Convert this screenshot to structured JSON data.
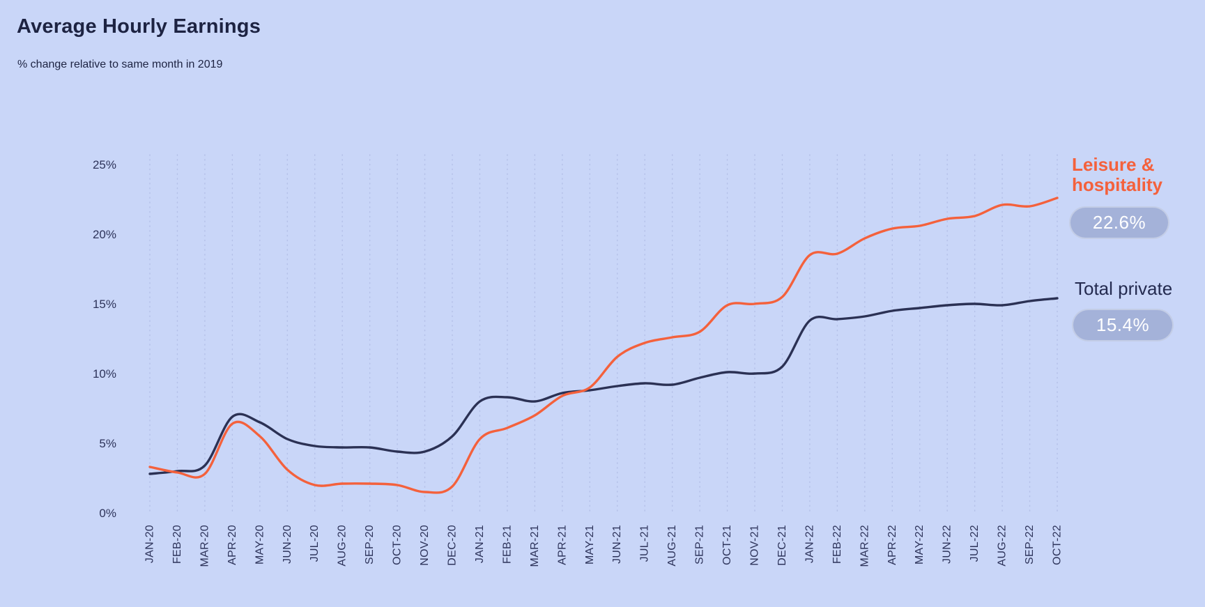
{
  "header": {
    "title": "Average Hourly Earnings",
    "subtitle": "% change relative to same month in 2019"
  },
  "legend": [
    {
      "name": "Leisure & hospitality",
      "value": "22.6%",
      "color": "#f4613c"
    },
    {
      "name": "Total private",
      "value": "15.4%",
      "color": "#242b50"
    }
  ],
  "colors": {
    "background": "#c9d6f8",
    "leisure_line": "#f4613c",
    "total_private_line": "#2b3154",
    "value_pill_background": "#a4b2d9",
    "value_pill_text": "#ffffff",
    "axis_text": "#2d335a",
    "gridline": "#b4c0e8",
    "title_text": "#1d2342"
  },
  "chart_data": {
    "type": "line",
    "title": "Average Hourly Earnings",
    "subtitle": "% change relative to same month in 2019",
    "categories": [
      "JAN-20",
      "FEB-20",
      "MAR-20",
      "APR-20",
      "MAY-20",
      "JUN-20",
      "JUL-20",
      "AUG-20",
      "SEP-20",
      "OCT-20",
      "NOV-20",
      "DEC-20",
      "JAN-21",
      "FEB-21",
      "MAR-21",
      "APR-21",
      "MAY-21",
      "JUN-21",
      "JUL-21",
      "AUG-21",
      "SEP-21",
      "OCT-21",
      "NOV-21",
      "DEC-21",
      "JAN-22",
      "FEB-22",
      "MAR-22",
      "APR-22",
      "MAY-22",
      "JUN-22",
      "JUL-22",
      "AUG-22",
      "SEP-22",
      "OCT-22"
    ],
    "series": [
      {
        "name": "Total private",
        "color": "#2b3154",
        "end_label": "15.4%",
        "values": [
          2.8,
          3.0,
          3.4,
          6.9,
          6.5,
          5.3,
          4.8,
          4.7,
          4.7,
          4.4,
          4.4,
          5.5,
          8.0,
          8.3,
          8.0,
          8.6,
          8.8,
          9.1,
          9.3,
          9.2,
          9.7,
          10.1,
          10.0,
          10.5,
          13.8,
          13.9,
          14.1,
          14.5,
          14.7,
          14.9,
          15.0,
          14.9,
          15.2,
          15.4
        ]
      },
      {
        "name": "Leisure & hospitality",
        "color": "#f4613c",
        "end_label": "22.6%",
        "values": [
          3.3,
          2.9,
          2.8,
          6.4,
          5.5,
          3.1,
          2.0,
          2.1,
          2.1,
          2.0,
          1.5,
          1.9,
          5.3,
          6.1,
          7.0,
          8.4,
          9.0,
          11.2,
          12.2,
          12.6,
          13.0,
          14.9,
          15.0,
          15.5,
          18.5,
          18.6,
          19.7,
          20.4,
          20.6,
          21.1,
          21.3,
          22.1,
          22.0,
          22.6
        ]
      }
    ],
    "ylim": [
      0,
      25
    ],
    "ytick_labels": [
      "0%",
      "5%",
      "10%",
      "15%",
      "20%",
      "25%"
    ],
    "ytick_values": [
      0,
      5,
      10,
      15,
      20,
      25
    ],
    "xlabel": "",
    "ylabel": "",
    "grid": "vertical-dotted-per-month",
    "legend_position": "right-of-plot"
  }
}
